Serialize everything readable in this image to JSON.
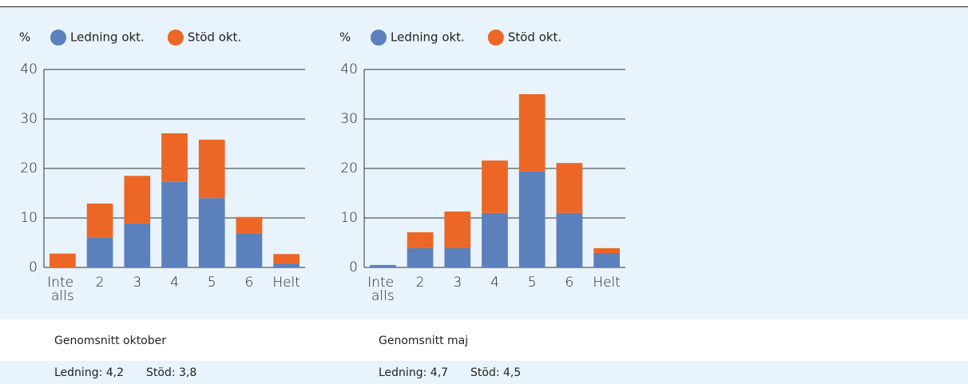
{
  "chart_data": [
    {
      "type": "bar",
      "stacked": true,
      "y_label": "%",
      "categories": [
        "Inte alls",
        "2",
        "3",
        "4",
        "5",
        "6",
        "Helt"
      ],
      "series": [
        {
          "name": "Ledning okt.",
          "color": "#5b80bb",
          "values": [
            0,
            6.0,
            8.9,
            17.3,
            14.0,
            6.9,
            0.8
          ]
        },
        {
          "name": "Stöd okt.",
          "color": "#ec6625",
          "values": [
            2.8,
            6.9,
            9.6,
            9.8,
            11.8,
            3.3,
            1.9
          ]
        }
      ],
      "ylim": [
        0,
        40
      ],
      "yticks": [
        0,
        10,
        20,
        30,
        40
      ],
      "grid": true
    },
    {
      "type": "bar",
      "stacked": true,
      "y_label": "%",
      "categories": [
        "Inte alls",
        "2",
        "3",
        "4",
        "5",
        "6",
        "Helt"
      ],
      "series": [
        {
          "name": "Ledning okt.",
          "color": "#5b80bb",
          "values": [
            0.5,
            3.9,
            3.9,
            11.0,
            19.4,
            11.0,
            2.9
          ]
        },
        {
          "name": "Stöd okt.",
          "color": "#ec6625",
          "values": [
            0,
            3.2,
            7.4,
            10.6,
            15.6,
            10.1,
            1.0
          ]
        }
      ],
      "ylim": [
        0,
        40
      ],
      "yticks": [
        0,
        10,
        20,
        30,
        40
      ],
      "grid": true
    }
  ],
  "summaries": [
    {
      "heading": "Genomsnitt oktober",
      "items": [
        "Ledning: 4,2",
        "Stöd: 3,8"
      ]
    },
    {
      "heading": "Genomsnitt maj",
      "items": [
        "Ledning: 4,7",
        "Stöd: 4,5"
      ]
    }
  ]
}
